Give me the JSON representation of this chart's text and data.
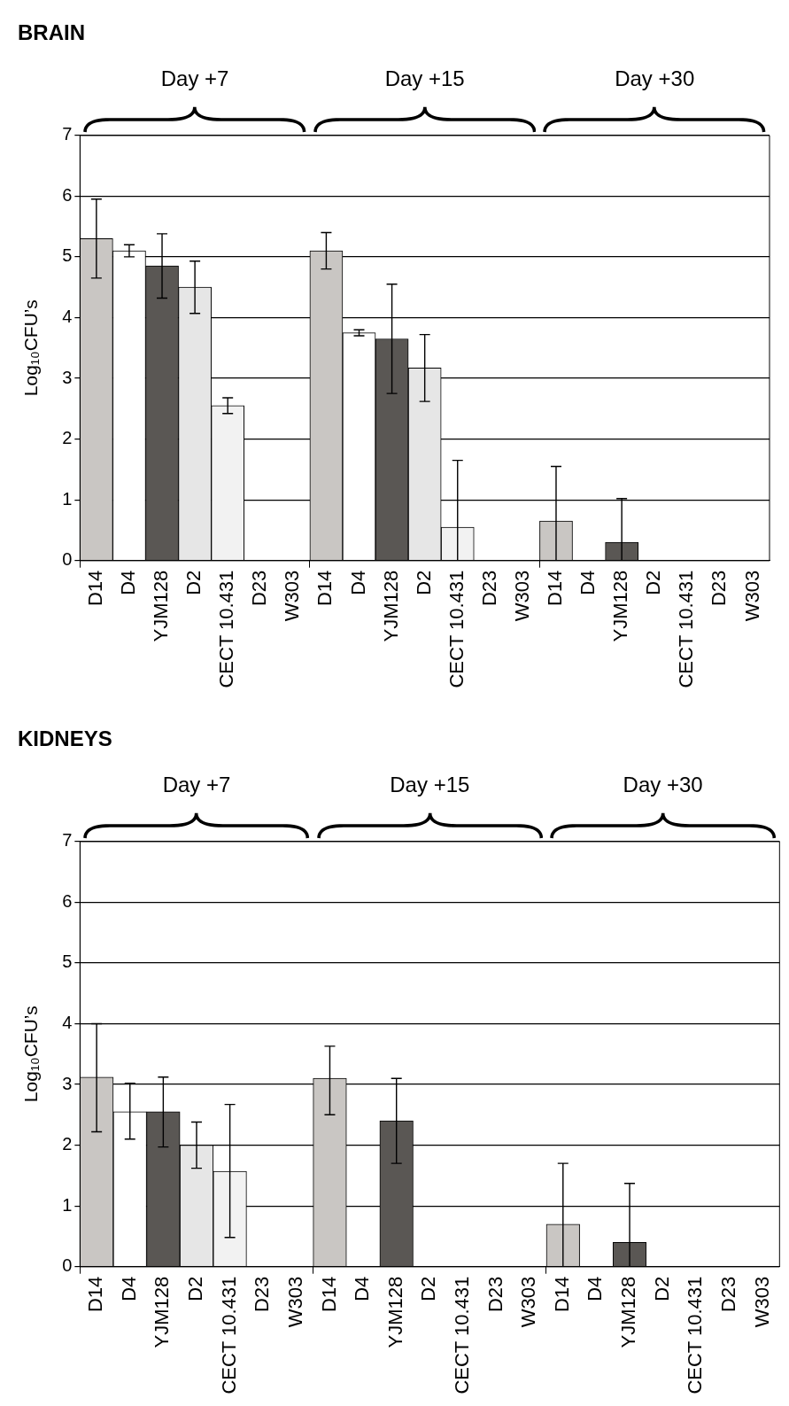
{
  "chart_data": [
    {
      "type": "bar",
      "title": "BRAIN",
      "ylabel": "Log₁₀CFU’s",
      "annotations": [
        "Day +7",
        "Day +15",
        "Day +30"
      ],
      "categories": [
        "D14",
        "D4",
        "YJM128",
        "D2",
        "CECT 10.431",
        "D23",
        "W303",
        "D14",
        "D4",
        "YJM128",
        "D2",
        "CECT 10.431",
        "D23",
        "W303",
        "D14",
        "D4",
        "YJM128",
        "D2",
        "CECT 10.431",
        "D23",
        "W303"
      ],
      "values": [
        5.3,
        5.1,
        4.85,
        4.5,
        2.55,
        0,
        0,
        5.1,
        3.75,
        3.65,
        3.17,
        0.55,
        0,
        0,
        0.65,
        0,
        0.3,
        0,
        0,
        0,
        0
      ],
      "errors": [
        0.65,
        0.1,
        0.53,
        0.43,
        0.13,
        null,
        null,
        0.3,
        0.05,
        0.9,
        0.55,
        [
          0,
          1.65
        ],
        null,
        null,
        [
          0,
          1.55
        ],
        null,
        [
          0,
          1.02
        ],
        null,
        null,
        null,
        null
      ],
      "colors": [
        "#c9c6c3",
        "#ffffff",
        "#5a5754",
        "#e6e6e6",
        "#f2f2f2",
        "#ffffff",
        "#ffffff",
        "#c9c6c3",
        "#ffffff",
        "#5a5754",
        "#e6e6e6",
        "#f2f2f2",
        "#ffffff",
        "#ffffff",
        "#c9c6c3",
        "#ffffff",
        "#5a5754",
        "#e6e6e6",
        "#f2f2f2",
        "#ffffff",
        "#ffffff"
      ],
      "ylim": [
        0,
        7
      ],
      "yticks": [
        0,
        1,
        2,
        3,
        4,
        5,
        6,
        7
      ],
      "grid": "y",
      "legend": false
    },
    {
      "type": "bar",
      "title": "KIDNEYS",
      "ylabel": "Log₁₀CFU’s",
      "annotations": [
        "Day +7",
        "Day +15",
        "Day +30"
      ],
      "categories": [
        "D14",
        "D4",
        "YJM128",
        "D2",
        "CECT 10.431",
        "D23",
        "W303",
        "D14",
        "D4",
        "YJM128",
        "D2",
        "CECT 10.431",
        "D23",
        "W303",
        "D14",
        "D4",
        "YJM128",
        "D2",
        "CECT 10.431",
        "D23",
        "W303"
      ],
      "values": [
        3.12,
        2.55,
        2.55,
        2.0,
        1.57,
        0,
        0,
        3.1,
        0,
        2.4,
        0,
        0,
        0,
        0,
        0.7,
        0,
        0.4,
        0,
        0,
        0,
        0
      ],
      "errors": [
        [
          2.22,
          4.0
        ],
        [
          2.1,
          3.02
        ],
        [
          1.97,
          3.12
        ],
        [
          1.62,
          2.38
        ],
        [
          0.48,
          2.67
        ],
        null,
        null,
        [
          2.5,
          3.63
        ],
        null,
        [
          1.7,
          3.1
        ],
        null,
        null,
        null,
        null,
        [
          0,
          1.7
        ],
        null,
        [
          0,
          1.37
        ],
        null,
        null,
        null,
        null
      ],
      "colors": [
        "#c9c6c3",
        "#ffffff",
        "#5a5754",
        "#e6e6e6",
        "#f2f2f2",
        "#ffffff",
        "#ffffff",
        "#c9c6c3",
        "#ffffff",
        "#5a5754",
        "#e6e6e6",
        "#f2f2f2",
        "#ffffff",
        "#ffffff",
        "#c9c6c3",
        "#ffffff",
        "#5a5754",
        "#e6e6e6",
        "#f2f2f2",
        "#ffffff",
        "#ffffff"
      ],
      "ylim": [
        0,
        7
      ],
      "yticks": [
        0,
        1,
        2,
        3,
        4,
        5,
        6,
        7
      ],
      "grid": "y",
      "legend": false
    }
  ]
}
